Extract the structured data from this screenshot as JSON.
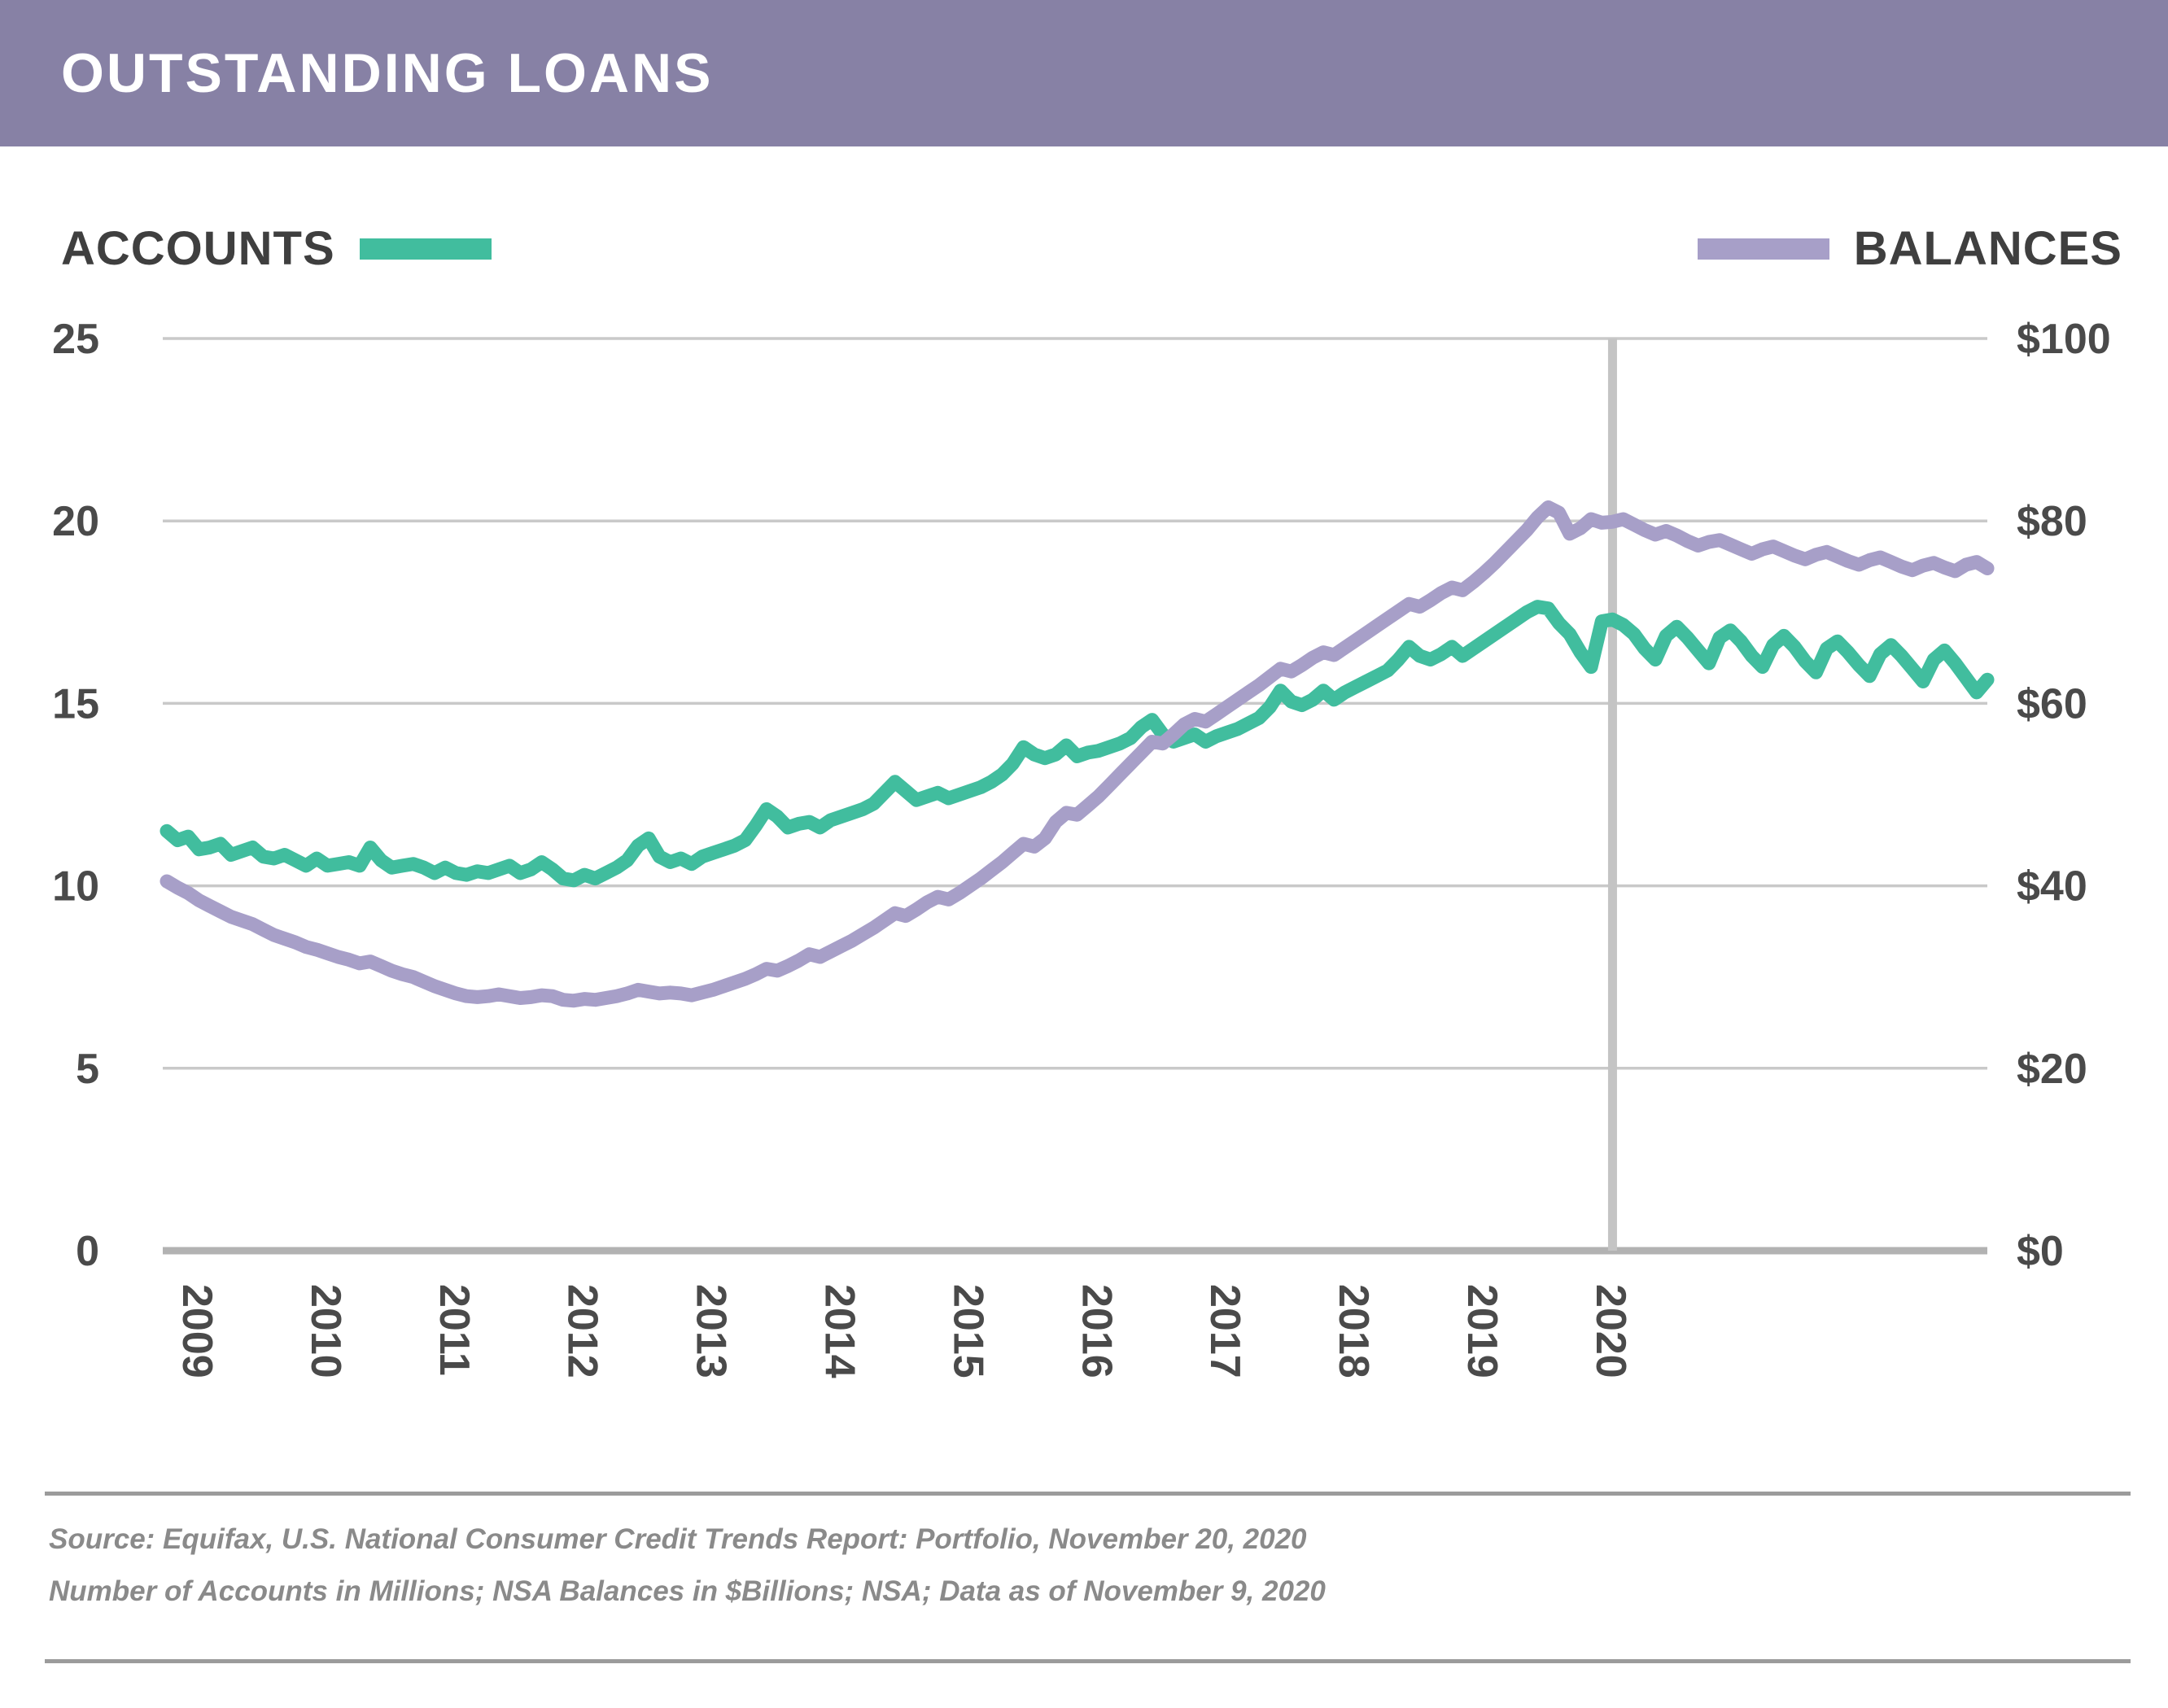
{
  "header": {
    "title": "OUTSTANDING LOANS"
  },
  "legend": {
    "accounts_label": "ACCOUNTS",
    "balances_label": "BALANCES"
  },
  "colors": {
    "header_bg": "#8781A5",
    "accounts": "#41BD9E",
    "balances": "#A79FC8",
    "gridline": "#C9C9C9",
    "baseline": "#B2B2B2",
    "divider": "#C4C4C4",
    "axis_text": "#4A4A4A"
  },
  "axes": {
    "left_tick_labels": [
      "25",
      "20",
      "15",
      "10",
      "5",
      "0"
    ],
    "right_tick_labels": [
      "$100",
      "$80",
      "$60",
      "$40",
      "$20",
      "$0"
    ],
    "year_labels": [
      "2009",
      "2010",
      "2011",
      "2012",
      "2013",
      "2014",
      "2015",
      "2016",
      "2017",
      "2018",
      "2019",
      "2020"
    ]
  },
  "footer": {
    "line1": "Source: Equifax, U.S. National Consumer Credit Trends Report: Portfolio, November 20, 2020",
    "line2": "Number of Accounts in Millions; NSA Balances in $Billions; NSA; Data as of November 9, 2020"
  },
  "chart_data": {
    "type": "line",
    "title": "OUTSTANDING LOANS",
    "x_axis": {
      "years": [
        "2009",
        "2010",
        "2011",
        "2012",
        "2013",
        "2014",
        "2015",
        "2016",
        "2017",
        "2018",
        "2019",
        "2020"
      ],
      "frequency_note": "monthly points Jan 2009 - Mar 2020, then weekly points through early Nov 2020",
      "divider_marker": "vertical gray line at ~Mar 2020"
    },
    "divider_index": 135,
    "left_axis": {
      "series": "ACCOUNTS",
      "unit": "Millions",
      "range": [
        0,
        25
      ],
      "ticks": [
        25,
        20,
        15,
        10,
        5,
        0
      ]
    },
    "right_axis": {
      "series": "BALANCES",
      "unit": "$Billions",
      "range": [
        0,
        100
      ],
      "ticks": [
        100,
        80,
        60,
        40,
        20,
        0
      ]
    },
    "grid": "horizontal gridlines only",
    "legend_position": "top, split left (ACCOUNTS) and right (BALANCES)",
    "series": [
      {
        "name": "ACCOUNTS",
        "axis": "left",
        "color": "#41BD9E",
        "values": [
          11.5,
          11.25,
          11.35,
          11.0,
          11.05,
          11.15,
          10.85,
          10.95,
          11.05,
          10.8,
          10.75,
          10.85,
          10.7,
          10.55,
          10.75,
          10.55,
          10.6,
          10.65,
          10.55,
          11.05,
          10.7,
          10.5,
          10.55,
          10.6,
          10.5,
          10.35,
          10.5,
          10.35,
          10.3,
          10.4,
          10.35,
          10.45,
          10.55,
          10.35,
          10.45,
          10.65,
          10.45,
          10.2,
          10.15,
          10.3,
          10.2,
          10.35,
          10.5,
          10.7,
          11.1,
          11.3,
          10.8,
          10.65,
          10.75,
          10.6,
          10.8,
          10.9,
          11.0,
          11.1,
          11.25,
          11.65,
          12.1,
          11.9,
          11.6,
          11.7,
          11.75,
          11.6,
          11.8,
          11.9,
          12.0,
          12.1,
          12.25,
          12.55,
          12.85,
          12.6,
          12.35,
          12.45,
          12.55,
          12.4,
          12.5,
          12.6,
          12.7,
          12.85,
          13.05,
          13.35,
          13.8,
          13.6,
          13.5,
          13.6,
          13.85,
          13.55,
          13.65,
          13.7,
          13.8,
          13.9,
          14.05,
          14.35,
          14.55,
          14.15,
          13.95,
          14.05,
          14.15,
          13.95,
          14.1,
          14.2,
          14.3,
          14.45,
          14.6,
          14.9,
          15.35,
          15.05,
          14.95,
          15.1,
          15.35,
          15.1,
          15.3,
          15.45,
          15.6,
          15.75,
          15.9,
          16.2,
          16.55,
          16.3,
          16.2,
          16.35,
          16.55,
          16.3,
          16.5,
          16.7,
          16.9,
          17.1,
          17.3,
          17.5,
          17.65,
          17.6,
          17.2,
          16.9,
          16.4,
          16.0,
          17.25,
          17.3,
          17.15,
          16.9,
          16.5,
          16.2,
          16.85,
          17.1,
          16.8,
          16.45,
          16.1,
          16.8,
          17.0,
          16.7,
          16.3,
          16.0,
          16.6,
          16.85,
          16.55,
          16.15,
          15.85,
          16.5,
          16.7,
          16.4,
          16.05,
          15.75,
          16.35,
          16.6,
          16.3,
          15.95,
          15.6,
          16.2,
          16.45,
          16.1,
          15.7,
          15.3,
          15.65
        ]
      },
      {
        "name": "BALANCES",
        "axis": "right",
        "color": "#A79FC8",
        "values": [
          40.5,
          39.8,
          39.2,
          38.4,
          37.8,
          37.2,
          36.6,
          36.2,
          35.8,
          35.2,
          34.6,
          34.2,
          33.8,
          33.3,
          33.0,
          32.6,
          32.2,
          31.9,
          31.5,
          31.7,
          31.2,
          30.7,
          30.3,
          30.0,
          29.5,
          29.0,
          28.6,
          28.2,
          27.9,
          27.8,
          27.9,
          28.1,
          27.9,
          27.7,
          27.8,
          28.0,
          27.9,
          27.5,
          27.4,
          27.6,
          27.5,
          27.7,
          27.9,
          28.2,
          28.6,
          28.4,
          28.2,
          28.3,
          28.2,
          28.0,
          28.3,
          28.6,
          29.0,
          29.4,
          29.8,
          30.3,
          30.9,
          30.7,
          31.2,
          31.8,
          32.5,
          32.2,
          32.8,
          33.4,
          34.0,
          34.7,
          35.4,
          36.2,
          37.0,
          36.7,
          37.4,
          38.2,
          38.8,
          38.5,
          39.2,
          40.0,
          40.8,
          41.7,
          42.6,
          43.6,
          44.6,
          44.3,
          45.2,
          47.0,
          48.0,
          47.8,
          48.8,
          49.8,
          51.0,
          52.2,
          53.4,
          54.6,
          55.8,
          55.6,
          56.6,
          57.7,
          58.3,
          58.0,
          58.8,
          59.6,
          60.4,
          61.2,
          62.0,
          62.9,
          63.8,
          63.5,
          64.2,
          65.0,
          65.6,
          65.3,
          66.1,
          66.9,
          67.7,
          68.5,
          69.3,
          70.1,
          70.9,
          70.6,
          71.3,
          72.1,
          72.7,
          72.4,
          73.3,
          74.3,
          75.4,
          76.6,
          77.8,
          79.0,
          80.4,
          81.5,
          80.9,
          78.6,
          79.2,
          80.2,
          79.8,
          79.9,
          80.2,
          79.6,
          79.0,
          78.5,
          78.9,
          78.4,
          77.8,
          77.3,
          77.7,
          77.9,
          77.4,
          76.9,
          76.4,
          76.9,
          77.2,
          76.7,
          76.2,
          75.8,
          76.3,
          76.6,
          76.1,
          75.6,
          75.2,
          75.7,
          76.0,
          75.5,
          75.0,
          74.6,
          75.1,
          75.4,
          74.9,
          74.5,
          75.2,
          75.5,
          74.8
        ]
      }
    ]
  }
}
